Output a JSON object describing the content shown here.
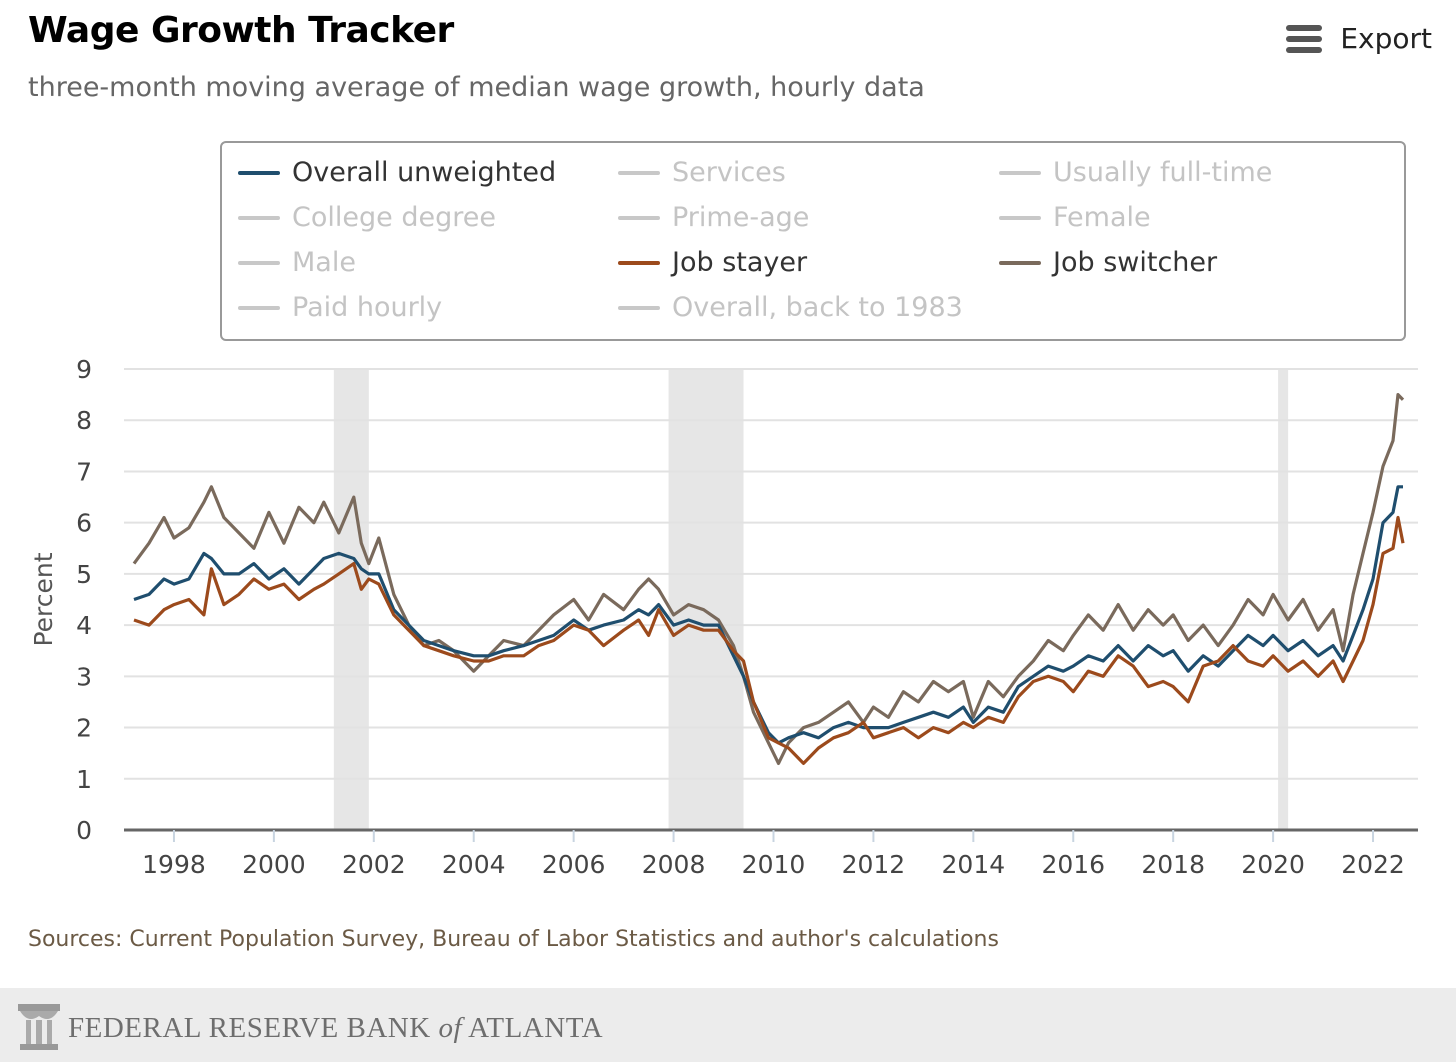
{
  "header": {
    "title": "Wage Growth Tracker",
    "subtitle": "three-month moving average of median wage growth, hourly data",
    "export_label": "Export"
  },
  "legend": [
    {
      "label": "Overall unweighted",
      "active": true,
      "color": "#1f4e6e"
    },
    {
      "label": "Services",
      "active": false,
      "color": "#c8c8c8"
    },
    {
      "label": "Usually full-time",
      "active": false,
      "color": "#c8c8c8"
    },
    {
      "label": "College degree",
      "active": false,
      "color": "#c8c8c8"
    },
    {
      "label": "Prime-age",
      "active": false,
      "color": "#c8c8c8"
    },
    {
      "label": "Female",
      "active": false,
      "color": "#c8c8c8"
    },
    {
      "label": "Male",
      "active": false,
      "color": "#c8c8c8"
    },
    {
      "label": "Job stayer",
      "active": true,
      "color": "#9c4a1c"
    },
    {
      "label": "Job switcher",
      "active": true,
      "color": "#7a6a5c"
    },
    {
      "label": "Paid hourly",
      "active": false,
      "color": "#c8c8c8"
    },
    {
      "label": "Overall, back to 1983",
      "active": false,
      "color": "#c8c8c8"
    }
  ],
  "source": "Sources: Current Population Survey, Bureau of Labor Statistics and author's calculations",
  "footer": {
    "brand_prefix": "FEDERAL RESERVE BANK ",
    "brand_of": "of",
    "brand_suffix": " ATLANTA"
  },
  "chart_data": {
    "type": "line",
    "ylabel": "Percent",
    "xlim": [
      1997.0,
      2022.9
    ],
    "ylim": [
      0,
      9
    ],
    "yticks": [
      0,
      1,
      2,
      3,
      4,
      5,
      6,
      7,
      8,
      9
    ],
    "xticks": [
      1998,
      2000,
      2002,
      2004,
      2006,
      2008,
      2010,
      2012,
      2014,
      2016,
      2018,
      2020,
      2022
    ],
    "grid": "horizontal",
    "legend_position": "top",
    "recessions": [
      [
        2001.2,
        2001.9
      ],
      [
        2007.9,
        2009.4
      ],
      [
        2020.1,
        2020.3
      ]
    ],
    "series": [
      {
        "name": "Job switcher",
        "color": "#7a6a5c",
        "x": [
          1997.2,
          1997.5,
          1997.8,
          1998.0,
          1998.3,
          1998.6,
          1998.75,
          1999.0,
          1999.3,
          1999.6,
          1999.9,
          2000.2,
          2000.5,
          2000.8,
          2001.0,
          2001.3,
          2001.6,
          2001.75,
          2001.9,
          2002.1,
          2002.4,
          2002.7,
          2003.0,
          2003.3,
          2003.6,
          2004.0,
          2004.3,
          2004.6,
          2005.0,
          2005.3,
          2005.6,
          2006.0,
          2006.3,
          2006.6,
          2007.0,
          2007.3,
          2007.5,
          2007.7,
          2008.0,
          2008.3,
          2008.6,
          2008.9,
          2009.2,
          2009.4,
          2009.6,
          2009.9,
          2010.1,
          2010.3,
          2010.6,
          2010.9,
          2011.2,
          2011.5,
          2011.8,
          2012.0,
          2012.3,
          2012.6,
          2012.9,
          2013.2,
          2013.5,
          2013.8,
          2014.0,
          2014.3,
          2014.6,
          2014.9,
          2015.2,
          2015.5,
          2015.8,
          2016.0,
          2016.3,
          2016.6,
          2016.9,
          2017.2,
          2017.5,
          2017.8,
          2018.0,
          2018.3,
          2018.6,
          2018.9,
          2019.2,
          2019.5,
          2019.8,
          2020.0,
          2020.3,
          2020.6,
          2020.9,
          2021.2,
          2021.4,
          2021.6,
          2021.8,
          2022.0,
          2022.2,
          2022.4,
          2022.5,
          2022.6
        ],
        "values": [
          5.2,
          5.6,
          6.1,
          5.7,
          5.9,
          6.4,
          6.7,
          6.1,
          5.8,
          5.5,
          6.2,
          5.6,
          6.3,
          6.0,
          6.4,
          5.8,
          6.5,
          5.6,
          5.2,
          5.7,
          4.6,
          4.0,
          3.6,
          3.7,
          3.5,
          3.1,
          3.4,
          3.7,
          3.6,
          3.9,
          4.2,
          4.5,
          4.1,
          4.6,
          4.3,
          4.7,
          4.9,
          4.7,
          4.2,
          4.4,
          4.3,
          4.1,
          3.6,
          3.0,
          2.3,
          1.7,
          1.3,
          1.7,
          2.0,
          2.1,
          2.3,
          2.5,
          2.1,
          2.4,
          2.2,
          2.7,
          2.5,
          2.9,
          2.7,
          2.9,
          2.2,
          2.9,
          2.6,
          3.0,
          3.3,
          3.7,
          3.5,
          3.8,
          4.2,
          3.9,
          4.4,
          3.9,
          4.3,
          4.0,
          4.2,
          3.7,
          4.0,
          3.6,
          4.0,
          4.5,
          4.2,
          4.6,
          4.1,
          4.5,
          3.9,
          4.3,
          3.5,
          4.6,
          5.4,
          6.2,
          7.1,
          7.6,
          8.5,
          8.4
        ]
      },
      {
        "name": "Overall unweighted",
        "color": "#1f4e6e",
        "x": [
          1997.2,
          1997.5,
          1997.8,
          1998.0,
          1998.3,
          1998.6,
          1998.75,
          1999.0,
          1999.3,
          1999.6,
          1999.9,
          2000.2,
          2000.5,
          2000.8,
          2001.0,
          2001.3,
          2001.6,
          2001.75,
          2001.9,
          2002.1,
          2002.4,
          2002.7,
          2003.0,
          2003.3,
          2003.6,
          2004.0,
          2004.3,
          2004.6,
          2005.0,
          2005.3,
          2005.6,
          2006.0,
          2006.3,
          2006.6,
          2007.0,
          2007.3,
          2007.5,
          2007.7,
          2008.0,
          2008.3,
          2008.6,
          2008.9,
          2009.2,
          2009.4,
          2009.6,
          2009.9,
          2010.1,
          2010.3,
          2010.6,
          2010.9,
          2011.2,
          2011.5,
          2011.8,
          2012.0,
          2012.3,
          2012.6,
          2012.9,
          2013.2,
          2013.5,
          2013.8,
          2014.0,
          2014.3,
          2014.6,
          2014.9,
          2015.2,
          2015.5,
          2015.8,
          2016.0,
          2016.3,
          2016.6,
          2016.9,
          2017.2,
          2017.5,
          2017.8,
          2018.0,
          2018.3,
          2018.6,
          2018.9,
          2019.2,
          2019.5,
          2019.8,
          2020.0,
          2020.3,
          2020.6,
          2020.9,
          2021.2,
          2021.4,
          2021.6,
          2021.8,
          2022.0,
          2022.2,
          2022.4,
          2022.5,
          2022.6
        ],
        "values": [
          4.5,
          4.6,
          4.9,
          4.8,
          4.9,
          5.4,
          5.3,
          5.0,
          5.0,
          5.2,
          4.9,
          5.1,
          4.8,
          5.1,
          5.3,
          5.4,
          5.3,
          5.1,
          5.0,
          5.0,
          4.3,
          4.0,
          3.7,
          3.6,
          3.5,
          3.4,
          3.4,
          3.5,
          3.6,
          3.7,
          3.8,
          4.1,
          3.9,
          4.0,
          4.1,
          4.3,
          4.2,
          4.4,
          4.0,
          4.1,
          4.0,
          4.0,
          3.4,
          3.0,
          2.5,
          1.9,
          1.7,
          1.8,
          1.9,
          1.8,
          2.0,
          2.1,
          2.0,
          2.0,
          2.0,
          2.1,
          2.2,
          2.3,
          2.2,
          2.4,
          2.1,
          2.4,
          2.3,
          2.8,
          3.0,
          3.2,
          3.1,
          3.2,
          3.4,
          3.3,
          3.6,
          3.3,
          3.6,
          3.4,
          3.5,
          3.1,
          3.4,
          3.2,
          3.5,
          3.8,
          3.6,
          3.8,
          3.5,
          3.7,
          3.4,
          3.6,
          3.3,
          3.8,
          4.3,
          4.9,
          6.0,
          6.2,
          6.7,
          6.7
        ]
      },
      {
        "name": "Job stayer",
        "color": "#9c4a1c",
        "x": [
          1997.2,
          1997.5,
          1997.8,
          1998.0,
          1998.3,
          1998.6,
          1998.75,
          1999.0,
          1999.3,
          1999.6,
          1999.9,
          2000.2,
          2000.5,
          2000.8,
          2001.0,
          2001.3,
          2001.6,
          2001.75,
          2001.9,
          2002.1,
          2002.4,
          2002.7,
          2003.0,
          2003.3,
          2003.6,
          2004.0,
          2004.3,
          2004.6,
          2005.0,
          2005.3,
          2005.6,
          2006.0,
          2006.3,
          2006.6,
          2007.0,
          2007.3,
          2007.5,
          2007.7,
          2008.0,
          2008.3,
          2008.6,
          2008.9,
          2009.2,
          2009.4,
          2009.6,
          2009.9,
          2010.1,
          2010.3,
          2010.6,
          2010.9,
          2011.2,
          2011.5,
          2011.8,
          2012.0,
          2012.3,
          2012.6,
          2012.9,
          2013.2,
          2013.5,
          2013.8,
          2014.0,
          2014.3,
          2014.6,
          2014.9,
          2015.2,
          2015.5,
          2015.8,
          2016.0,
          2016.3,
          2016.6,
          2016.9,
          2017.2,
          2017.5,
          2017.8,
          2018.0,
          2018.3,
          2018.6,
          2018.9,
          2019.2,
          2019.5,
          2019.8,
          2020.0,
          2020.3,
          2020.6,
          2020.9,
          2021.2,
          2021.4,
          2021.6,
          2021.8,
          2022.0,
          2022.2,
          2022.4,
          2022.5,
          2022.6
        ],
        "values": [
          4.1,
          4.0,
          4.3,
          4.4,
          4.5,
          4.2,
          5.1,
          4.4,
          4.6,
          4.9,
          4.7,
          4.8,
          4.5,
          4.7,
          4.8,
          5.0,
          5.2,
          4.7,
          4.9,
          4.8,
          4.2,
          3.9,
          3.6,
          3.5,
          3.4,
          3.3,
          3.3,
          3.4,
          3.4,
          3.6,
          3.7,
          4.0,
          3.9,
          3.6,
          3.9,
          4.1,
          3.8,
          4.3,
          3.8,
          4.0,
          3.9,
          3.9,
          3.5,
          3.3,
          2.5,
          1.8,
          1.7,
          1.6,
          1.3,
          1.6,
          1.8,
          1.9,
          2.1,
          1.8,
          1.9,
          2.0,
          1.8,
          2.0,
          1.9,
          2.1,
          2.0,
          2.2,
          2.1,
          2.6,
          2.9,
          3.0,
          2.9,
          2.7,
          3.1,
          3.0,
          3.4,
          3.2,
          2.8,
          2.9,
          2.8,
          2.5,
          3.2,
          3.3,
          3.6,
          3.3,
          3.2,
          3.4,
          3.1,
          3.3,
          3.0,
          3.3,
          2.9,
          3.3,
          3.7,
          4.4,
          5.4,
          5.5,
          6.1,
          5.6
        ]
      }
    ]
  }
}
